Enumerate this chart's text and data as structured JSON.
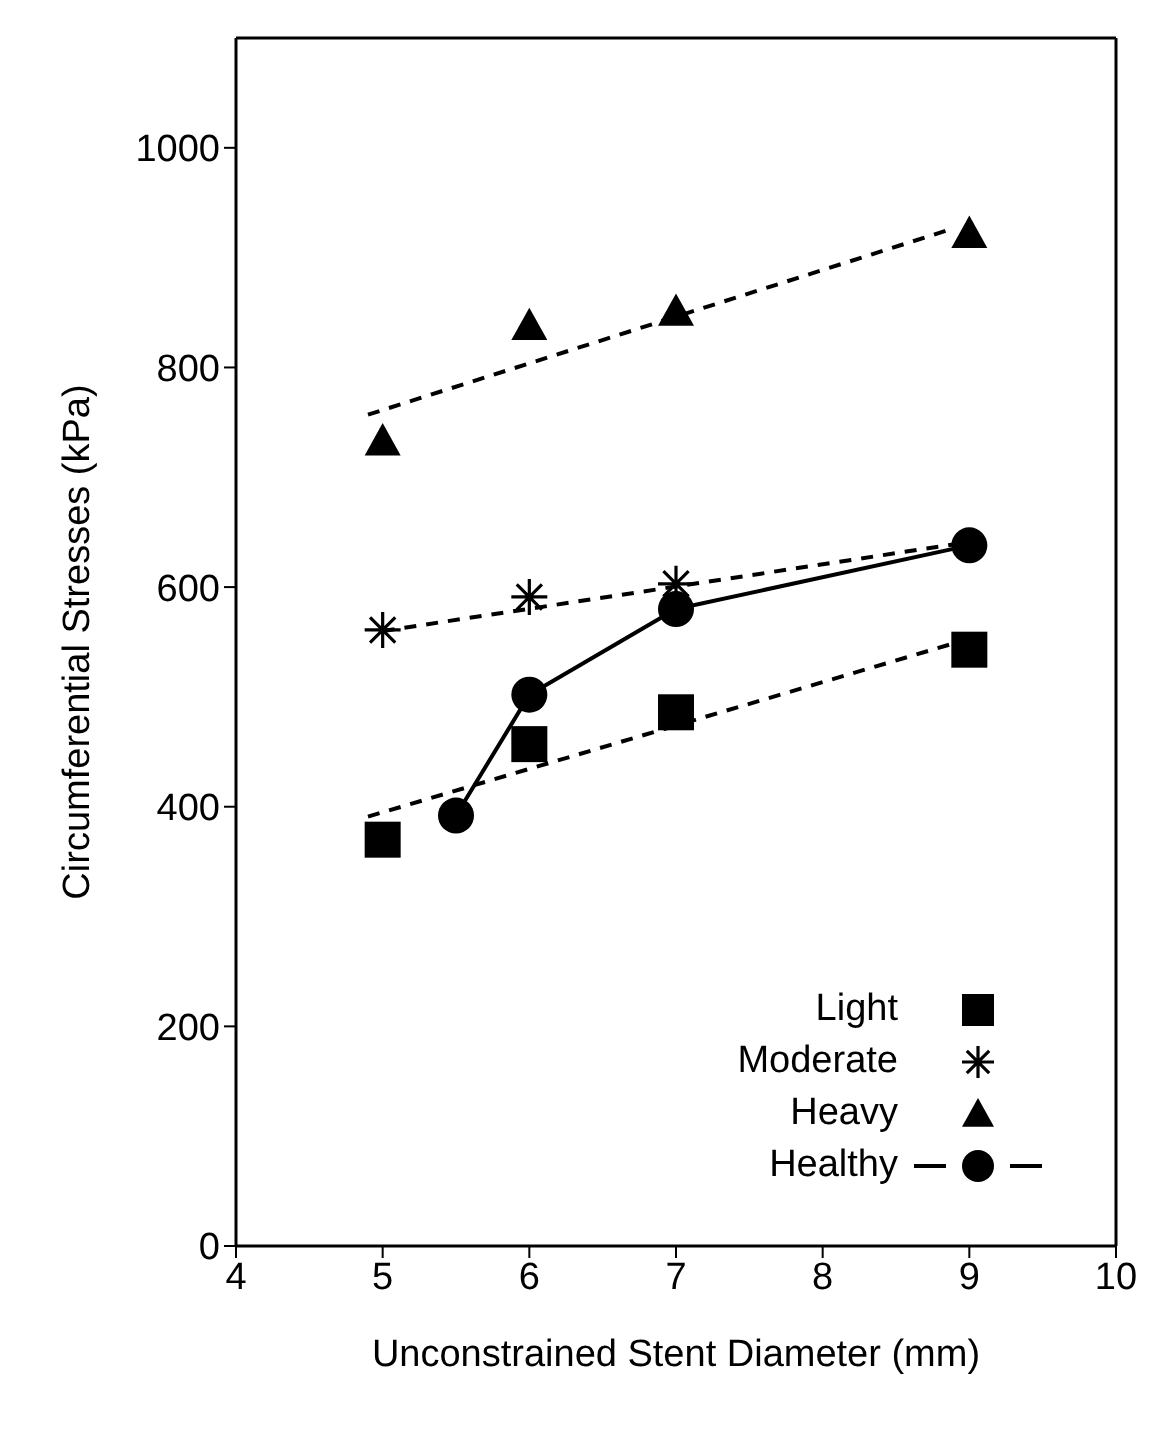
{
  "chart_data": {
    "type": "scatter",
    "xlabel": "Unconstrained Stent Diameter (mm)",
    "ylabel": "Circumferential Stresses (kPa)",
    "xlim": [
      4,
      10
    ],
    "xticks": [
      4,
      5,
      6,
      7,
      8,
      9,
      10
    ],
    "ylim": [
      0,
      1100
    ],
    "yticks": [
      0,
      200,
      400,
      600,
      800,
      1000
    ],
    "grid": false,
    "legend": "bottom right",
    "series": [
      {
        "name": "Light",
        "marker": "square",
        "color": "#000000",
        "x": [
          5,
          6,
          7,
          9
        ],
        "values": [
          370,
          457,
          486,
          543
        ]
      },
      {
        "name": "Moderate",
        "marker": "cross",
        "color": "#000000",
        "x": [
          5,
          6,
          7
        ],
        "values": [
          561,
          591,
          603
        ]
      },
      {
        "name": "Heavy",
        "marker": "triangle",
        "color": "#000000",
        "x": [
          5,
          6,
          7,
          9
        ],
        "values": [
          733,
          838,
          851,
          922
        ]
      },
      {
        "name": "Healthy",
        "type": "line",
        "marker": "circle",
        "line_style": "solid",
        "color": "#000000",
        "x": [
          5.5,
          6,
          7,
          9
        ],
        "values": [
          392,
          502,
          580,
          638
        ]
      },
      {
        "type": "line",
        "marker": "none",
        "line_style": "dashed",
        "color": "#000000",
        "x": [
          4.9,
          8.9
        ],
        "values": [
          391,
          549
        ]
      },
      {
        "type": "line",
        "marker": "none",
        "line_style": "dashed",
        "color": "#000000",
        "x": [
          5,
          8.9
        ],
        "values": [
          560,
          639
        ]
      },
      {
        "type": "line",
        "marker": "none",
        "line_style": "dashed",
        "color": "#000000",
        "x": [
          4.9,
          8.9
        ],
        "values": [
          757,
          927
        ]
      }
    ]
  }
}
